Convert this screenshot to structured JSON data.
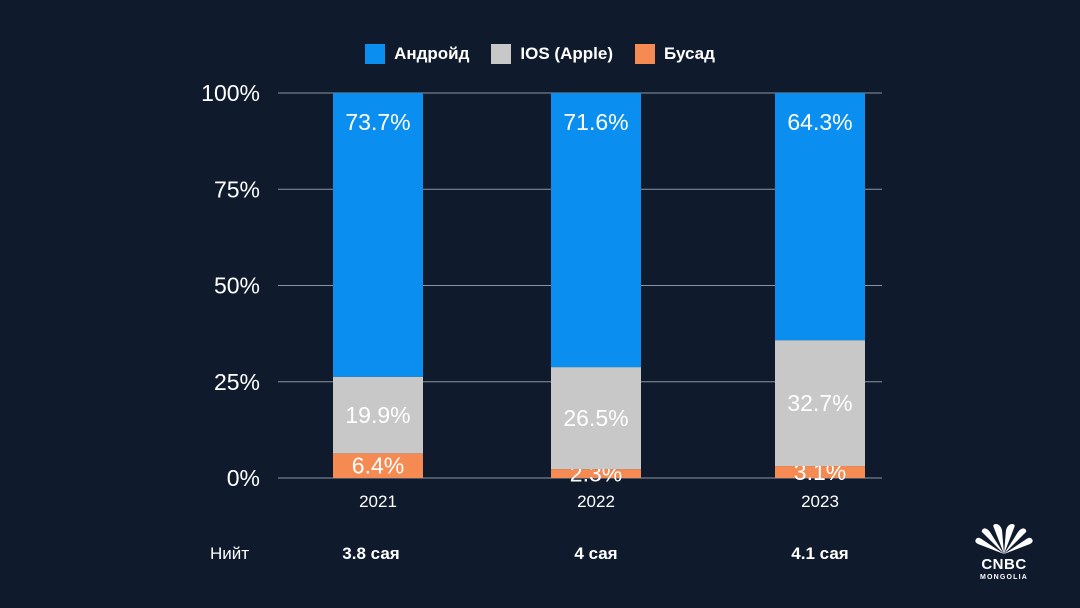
{
  "chart_data": {
    "type": "bar",
    "stacked": true,
    "categories": [
      "2021",
      "2022",
      "2023"
    ],
    "series": [
      {
        "name": "Бусад",
        "color": "#f58b52",
        "values": [
          6.4,
          2.3,
          3.1
        ],
        "labels": [
          "6.4%",
          "2.3%",
          "3.1%"
        ]
      },
      {
        "name": "IOS (Apple)",
        "color": "#c8c8c8",
        "values": [
          19.9,
          26.5,
          32.7
        ],
        "labels": [
          "19.9%",
          "26.5%",
          "32.7%"
        ]
      },
      {
        "name": "Андройд",
        "color": "#0a8ff0",
        "values": [
          73.7,
          71.6,
          64.3
        ],
        "labels": [
          "73.7%",
          "71.6%",
          "64.3%"
        ]
      }
    ],
    "legend_order": [
      "Андройд",
      "IOS (Apple)",
      "Бусад"
    ],
    "ylim": [
      0,
      100
    ],
    "yticks": [
      "0%",
      "25%",
      "50%",
      "75%",
      "100%"
    ],
    "yticks_values": [
      0,
      25,
      50,
      75,
      100
    ],
    "grid": true,
    "legend_position": "top-center",
    "xlabel": "",
    "ylabel": ""
  },
  "totals": {
    "label": "Нийт",
    "values": [
      "3.8 сая",
      "4 сая",
      "4.1 сая"
    ]
  },
  "logo": {
    "name": "CNBC",
    "sub": "MONGOLIA",
    "icon": "peacock-icon"
  }
}
